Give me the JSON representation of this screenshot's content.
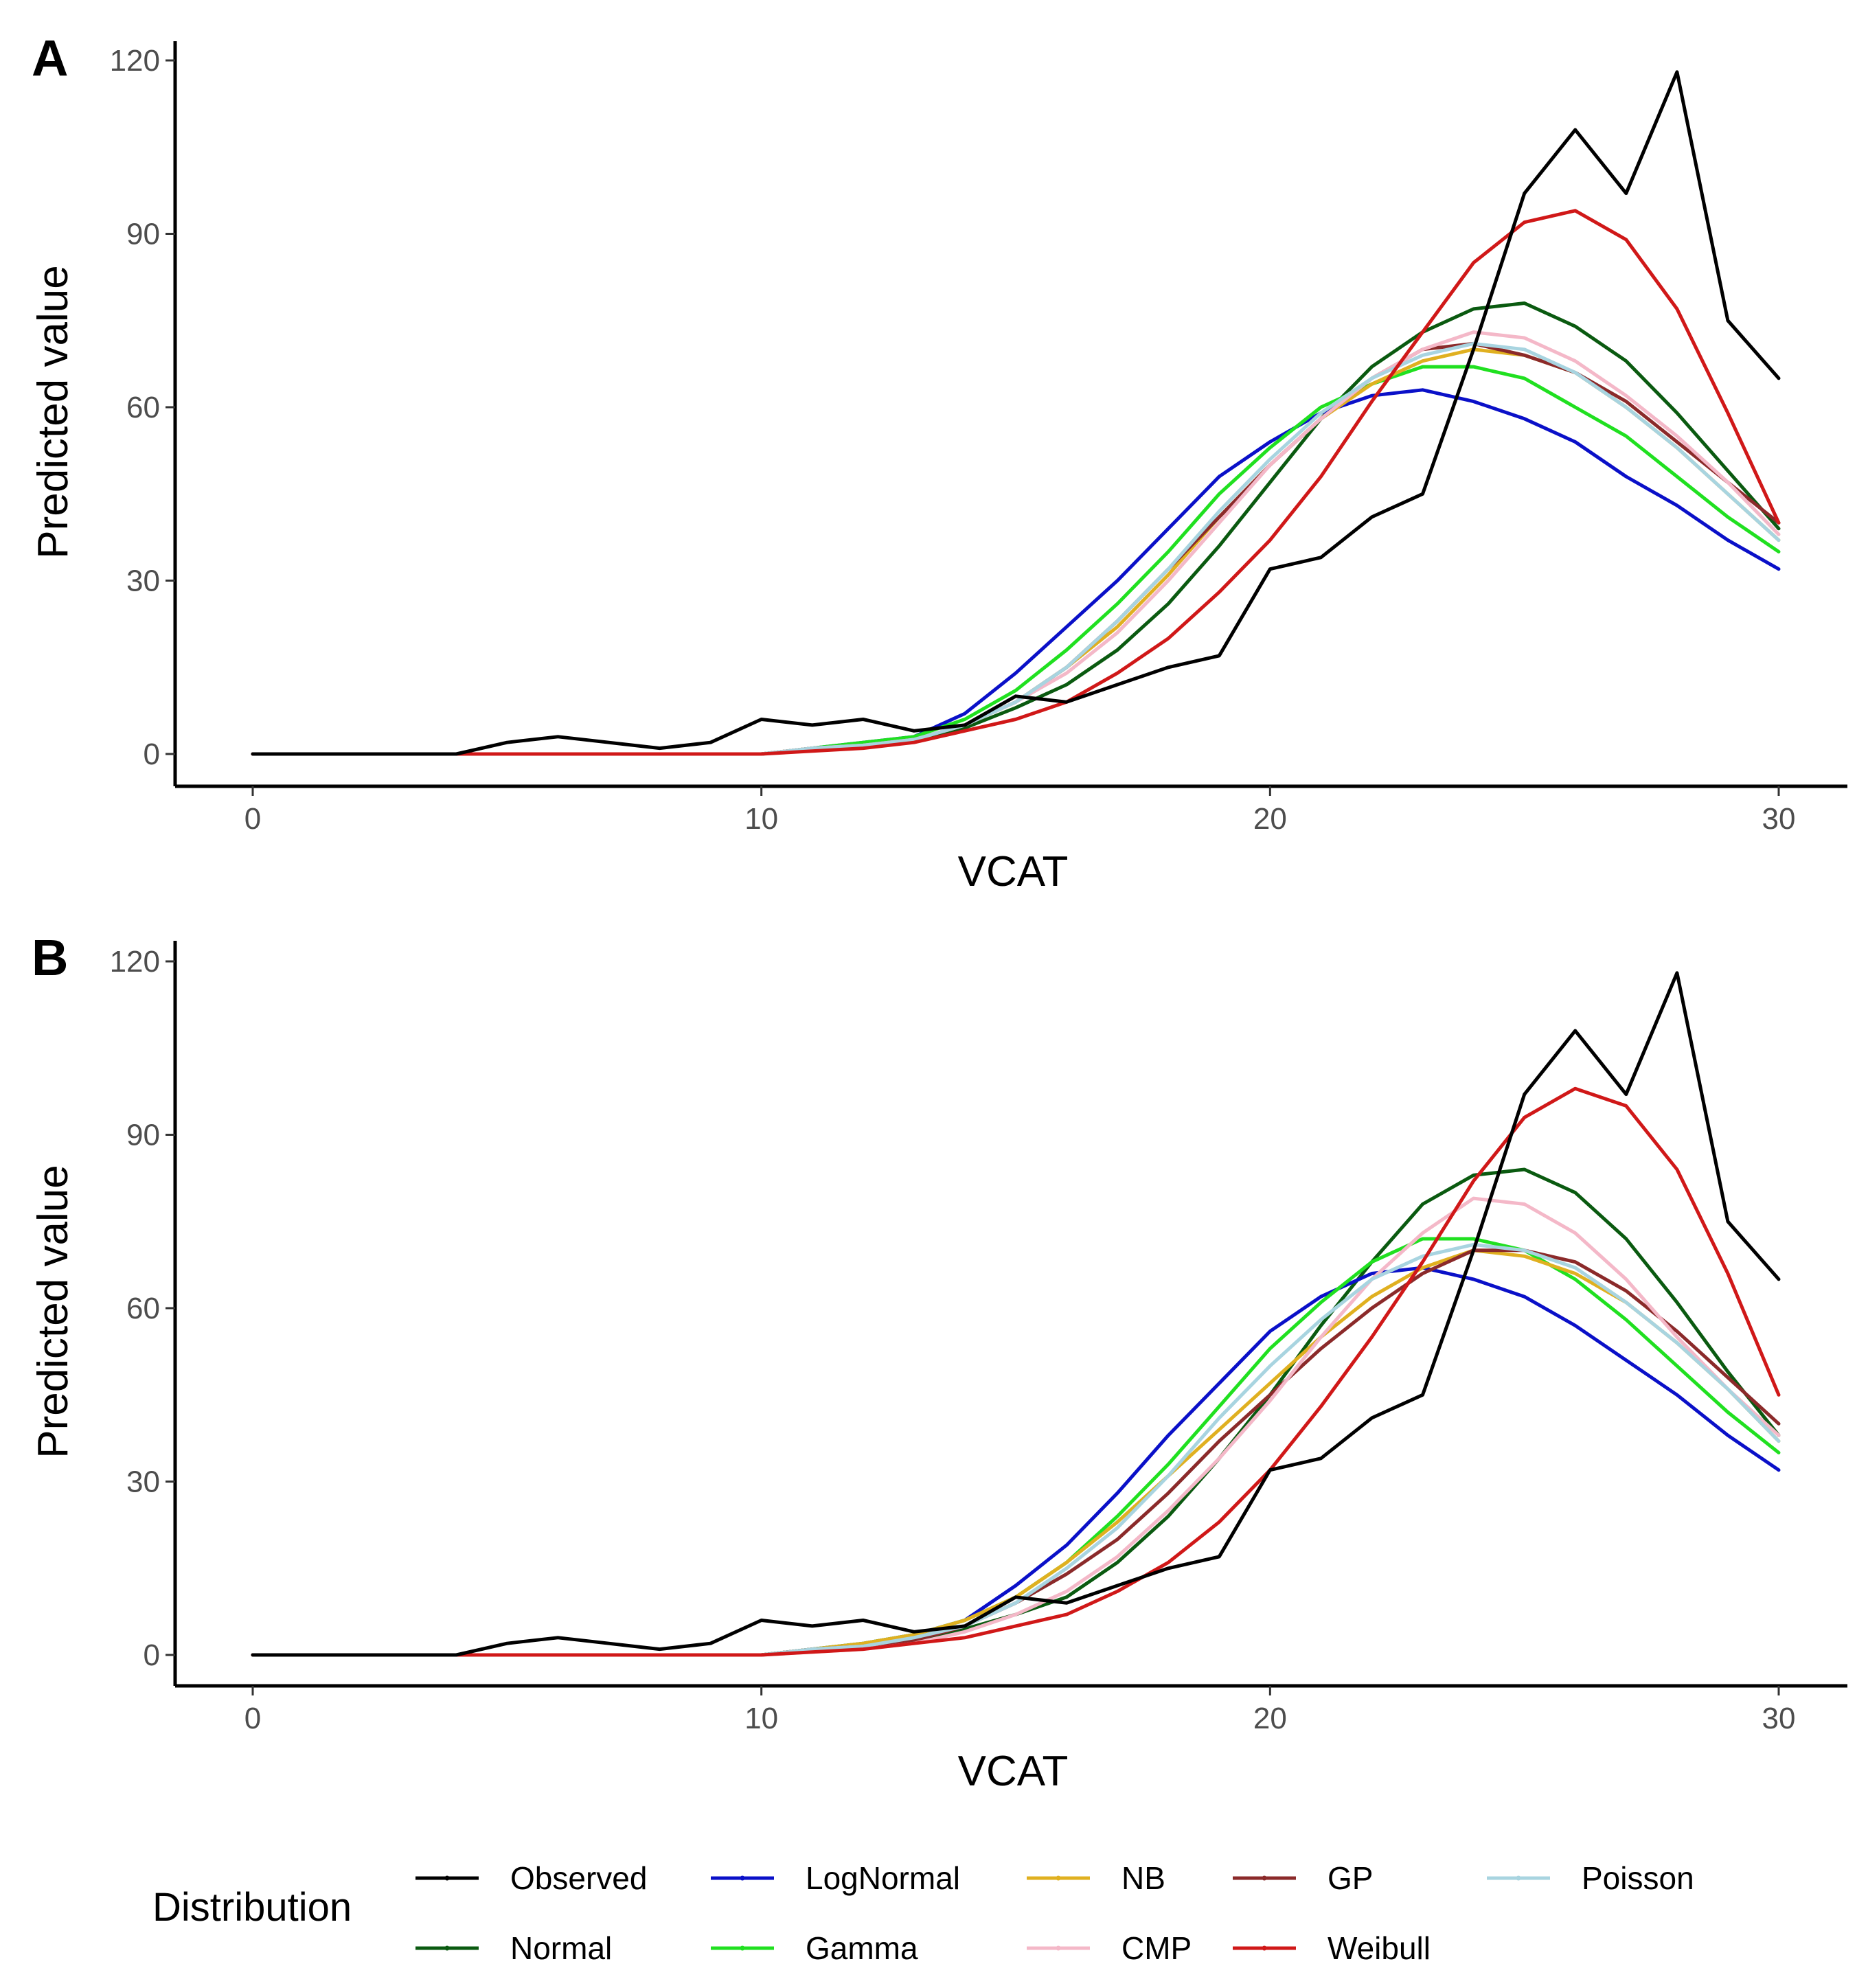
{
  "legend": {
    "title": "Distribution",
    "entries": [
      {
        "name": "Observed",
        "color": "#000000"
      },
      {
        "name": "LogNormal",
        "color": "#0a10c8"
      },
      {
        "name": "NB",
        "color": "#e0b020"
      },
      {
        "name": "GP",
        "color": "#8b2a2a"
      },
      {
        "name": "Poisson",
        "color": "#a8d4e0"
      },
      {
        "name": "Normal",
        "color": "#0a5a10"
      },
      {
        "name": "Gamma",
        "color": "#20e020"
      },
      {
        "name": "CMP",
        "color": "#f4b8c8"
      },
      {
        "name": "Weibull",
        "color": "#d01818"
      }
    ]
  },
  "chart_data": [
    {
      "panel": "A",
      "type": "line",
      "xlabel": "VCAT",
      "ylabel": "Predicted value",
      "xlim": [
        0,
        30
      ],
      "ylim": [
        0,
        120
      ],
      "xticks": [
        0,
        10,
        20,
        30
      ],
      "yticks": [
        0,
        30,
        60,
        90,
        120
      ],
      "x": [
        0,
        1,
        2,
        3,
        4,
        5,
        6,
        7,
        8,
        9,
        10,
        11,
        12,
        13,
        14,
        15,
        16,
        17,
        18,
        19,
        20,
        21,
        22,
        23,
        24,
        25,
        26,
        27,
        28,
        29,
        30
      ],
      "series": [
        {
          "name": "Observed",
          "values": [
            0,
            0,
            0,
            0,
            0,
            2,
            3,
            2,
            1,
            2,
            6,
            5,
            6,
            4,
            5,
            10,
            9,
            12,
            15,
            17,
            32,
            34,
            41,
            45,
            70,
            97,
            108,
            97,
            118,
            75,
            65
          ]
        },
        {
          "name": "LogNormal",
          "values": [
            0,
            0,
            0,
            0,
            0,
            0,
            0,
            0,
            0,
            0,
            0,
            1,
            2,
            3,
            7,
            14,
            22,
            30,
            39,
            48,
            54,
            59,
            62,
            63,
            61,
            58,
            54,
            48,
            43,
            37,
            32
          ]
        },
        {
          "name": "NB",
          "values": [
            0,
            0,
            0,
            0,
            0,
            0,
            0,
            0,
            0,
            0,
            0,
            1,
            1.5,
            2.5,
            5,
            9,
            15,
            22,
            31,
            41,
            50,
            58,
            64,
            68,
            70,
            69,
            66,
            60,
            53,
            45,
            37
          ]
        },
        {
          "name": "GP",
          "values": [
            0,
            0,
            0,
            0,
            0,
            0,
            0,
            0,
            0,
            0,
            0,
            1,
            1.5,
            2.5,
            5,
            9,
            15,
            23,
            32,
            41,
            50,
            58,
            65,
            70,
            71,
            69,
            66,
            61,
            54,
            47,
            40
          ]
        },
        {
          "name": "Poisson",
          "values": [
            0,
            0,
            0,
            0,
            0,
            0,
            0,
            0,
            0,
            0,
            0,
            1,
            1.5,
            2.5,
            5,
            9,
            15,
            23,
            32,
            42,
            51,
            59,
            65,
            69,
            71,
            70,
            66,
            60,
            53,
            45,
            37
          ]
        },
        {
          "name": "Normal",
          "values": [
            0,
            0,
            0,
            0,
            0,
            0,
            0,
            0,
            0,
            0,
            0,
            1,
            1.5,
            2.5,
            4.5,
            8,
            12,
            18,
            26,
            36,
            47,
            58,
            67,
            73,
            77,
            78,
            74,
            68,
            59,
            49,
            39
          ]
        },
        {
          "name": "Gamma",
          "values": [
            0,
            0,
            0,
            0,
            0,
            0,
            0,
            0,
            0,
            0,
            0,
            1,
            2,
            3,
            6,
            11,
            18,
            26,
            35,
            45,
            53,
            60,
            64,
            67,
            67,
            65,
            60,
            55,
            48,
            41,
            35
          ]
        },
        {
          "name": "CMP",
          "values": [
            0,
            0,
            0,
            0,
            0,
            0,
            0,
            0,
            0,
            0,
            0,
            1,
            1.5,
            2.5,
            5,
            9,
            14,
            21,
            30,
            40,
            50,
            58,
            65,
            70,
            73,
            72,
            68,
            62,
            55,
            47,
            38
          ]
        },
        {
          "name": "Weibull",
          "values": [
            0,
            0,
            0,
            0,
            0,
            0,
            0,
            0,
            0,
            0,
            0,
            0.5,
            1,
            2,
            4,
            6,
            9,
            14,
            20,
            28,
            37,
            48,
            61,
            73,
            85,
            92,
            94,
            89,
            77,
            59,
            40
          ]
        }
      ]
    },
    {
      "panel": "B",
      "type": "line",
      "xlabel": "VCAT",
      "ylabel": "Predicted value",
      "xlim": [
        0,
        30
      ],
      "ylim": [
        0,
        120
      ],
      "xticks": [
        0,
        10,
        20,
        30
      ],
      "yticks": [
        0,
        30,
        60,
        90,
        120
      ],
      "x": [
        0,
        1,
        2,
        3,
        4,
        5,
        6,
        7,
        8,
        9,
        10,
        11,
        12,
        13,
        14,
        15,
        16,
        17,
        18,
        19,
        20,
        21,
        22,
        23,
        24,
        25,
        26,
        27,
        28,
        29,
        30
      ],
      "series": [
        {
          "name": "Observed",
          "values": [
            0,
            0,
            0,
            0,
            0,
            2,
            3,
            2,
            1,
            2,
            6,
            5,
            6,
            4,
            5,
            10,
            9,
            12,
            15,
            17,
            32,
            34,
            41,
            45,
            70,
            97,
            108,
            97,
            118,
            75,
            65
          ]
        },
        {
          "name": "LogNormal",
          "values": [
            0,
            0,
            0,
            0,
            0,
            0,
            0,
            0,
            0,
            0,
            0,
            1,
            2,
            3.5,
            6,
            12,
            19,
            28,
            38,
            47,
            56,
            62,
            66,
            67,
            65,
            62,
            57,
            51,
            45,
            38,
            32
          ]
        },
        {
          "name": "NB",
          "values": [
            0,
            0,
            0,
            0,
            0,
            0,
            0,
            0,
            0,
            0,
            0,
            1,
            2,
            3.5,
            6,
            10,
            16,
            23,
            31,
            39,
            47,
            55,
            62,
            67,
            70,
            69,
            66,
            61,
            54,
            46,
            37
          ]
        },
        {
          "name": "GP",
          "values": [
            0,
            0,
            0,
            0,
            0,
            0,
            0,
            0,
            0,
            0,
            0,
            1,
            1.5,
            2.5,
            5,
            9,
            14,
            20,
            28,
            37,
            45,
            53,
            60,
            66,
            70,
            70,
            68,
            63,
            56,
            48,
            40
          ]
        },
        {
          "name": "Poisson",
          "values": [
            0,
            0,
            0,
            0,
            0,
            0,
            0,
            0,
            0,
            0,
            0,
            1,
            1.5,
            3,
            5,
            9,
            15,
            22,
            31,
            41,
            50,
            58,
            65,
            69,
            71,
            70,
            67,
            61,
            54,
            46,
            37
          ]
        },
        {
          "name": "Normal",
          "values": [
            0,
            0,
            0,
            0,
            0,
            0,
            0,
            0,
            0,
            0,
            0,
            1,
            1.5,
            2.5,
            4.5,
            7,
            10,
            16,
            24,
            34,
            45,
            57,
            68,
            78,
            83,
            84,
            80,
            72,
            61,
            49,
            38
          ]
        },
        {
          "name": "Gamma",
          "values": [
            0,
            0,
            0,
            0,
            0,
            0,
            0,
            0,
            0,
            0,
            0,
            1,
            2,
            3.5,
            6,
            10,
            16,
            24,
            33,
            43,
            53,
            61,
            68,
            72,
            72,
            70,
            65,
            58,
            50,
            42,
            35
          ]
        },
        {
          "name": "CMP",
          "values": [
            0,
            0,
            0,
            0,
            0,
            0,
            0,
            0,
            0,
            0,
            0,
            0.5,
            1,
            2,
            4,
            7,
            11,
            17,
            25,
            34,
            44,
            55,
            65,
            73,
            79,
            78,
            73,
            65,
            55,
            46,
            38
          ]
        },
        {
          "name": "Weibull",
          "values": [
            0,
            0,
            0,
            0,
            0,
            0,
            0,
            0,
            0,
            0,
            0,
            0.5,
            1,
            2,
            3,
            5,
            7,
            11,
            16,
            23,
            32,
            43,
            55,
            68,
            82,
            93,
            98,
            95,
            84,
            66,
            45
          ]
        }
      ]
    }
  ]
}
